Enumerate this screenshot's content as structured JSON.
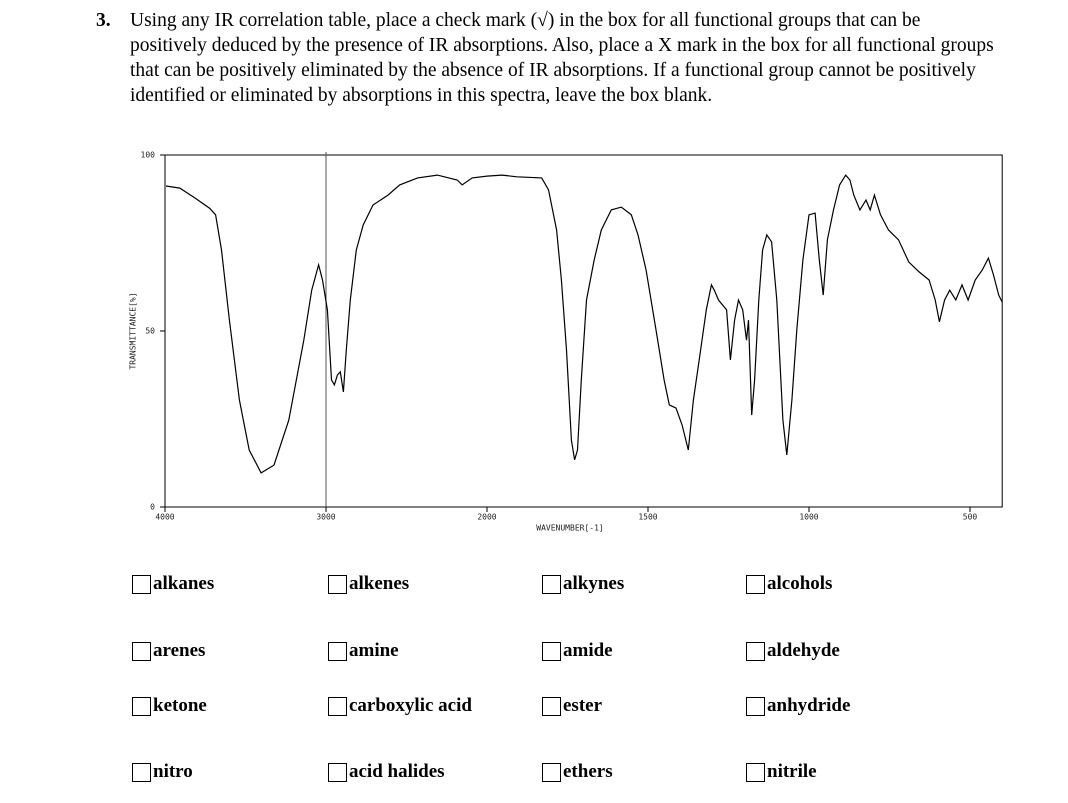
{
  "question": {
    "number": "3.",
    "text": "Using any IR correlation table, place a check mark (√) in the box for all functional groups that can be positively deduced by the presence of IR absorptions.  Also, place a X mark in the box for all functional groups that can be positively eliminated by the absence of IR absorptions.  If a functional group cannot be positively identified or eliminated by absorptions in this spectra, leave the box blank."
  },
  "chart_data": {
    "type": "line",
    "xlabel": "WAVENUMBER[-1]",
    "ylabel": "TRANSMITTANCE[%]",
    "color": "#000000",
    "x": [
      3994,
      3908,
      3815,
      3723,
      3686,
      3649,
      3600,
      3538,
      3477,
      3403,
      3323,
      3231,
      3138,
      3089,
      3046,
      3022,
      2991,
      2966,
      2948,
      2929,
      2911,
      2892,
      2874,
      2849,
      2812,
      2769,
      2708,
      2615,
      2542,
      2431,
      2308,
      2185,
      2154,
      2092,
      2000,
      1954,
      1907,
      1830,
      1809,
      1784,
      1769,
      1753,
      1738,
      1728,
      1719,
      1707,
      1691,
      1667,
      1645,
      1614,
      1583,
      1552,
      1531,
      1506,
      1475,
      1450,
      1434,
      1413,
      1394,
      1375,
      1359,
      1341,
      1319,
      1303,
      1294,
      1281,
      1256,
      1244,
      1231,
      1219,
      1206,
      1194,
      1188,
      1178,
      1169,
      1156,
      1144,
      1131,
      1116,
      1100,
      1081,
      1069,
      1053,
      1038,
      1019,
      1000,
      981,
      968,
      956,
      943,
      924,
      905,
      886,
      873,
      861,
      842,
      823,
      810,
      797,
      778,
      753,
      722,
      690,
      658,
      627,
      608,
      595,
      579,
      563,
      544,
      525,
      506,
      484,
      462,
      443,
      427,
      411,
      400
    ],
    "values": [
      91.2,
      90.6,
      87.8,
      84.9,
      83.0,
      73.0,
      53.1,
      30.4,
      16.2,
      9.7,
      11.9,
      24.7,
      47.4,
      61.6,
      68.8,
      64.5,
      56.0,
      36.1,
      34.7,
      37.5,
      38.4,
      32.7,
      44.6,
      58.8,
      73.0,
      80.1,
      85.8,
      88.6,
      91.5,
      93.5,
      94.3,
      92.9,
      91.5,
      93.5,
      94.0,
      94.3,
      93.8,
      93.5,
      90.1,
      78.7,
      64.5,
      44.6,
      19.0,
      13.4,
      16.2,
      36.1,
      58.8,
      70.2,
      78.7,
      84.4,
      85.2,
      83.0,
      77.3,
      67.3,
      50.3,
      36.1,
      29.0,
      28.1,
      23.3,
      16.2,
      30.4,
      41.8,
      56.0,
      63.1,
      61.6,
      58.8,
      56.0,
      41.8,
      53.1,
      58.8,
      56.0,
      47.4,
      53.1,
      26.1,
      36.1,
      58.8,
      73.0,
      77.3,
      75.3,
      58.8,
      24.7,
      14.8,
      30.4,
      50.3,
      70.2,
      83.0,
      83.5,
      70.2,
      60.2,
      75.9,
      84.4,
      91.5,
      94.3,
      92.9,
      88.6,
      84.4,
      87.2,
      84.4,
      88.6,
      83.0,
      78.7,
      75.9,
      69.6,
      66.8,
      64.5,
      58.8,
      52.6,
      58.8,
      61.6,
      58.8,
      63.1,
      58.8,
      64.5,
      67.3,
      70.7,
      65.9,
      60.2,
      58.2
    ],
    "xlim": [
      4000,
      400
    ],
    "xticks": [
      4000,
      3000,
      2000,
      1500,
      1000,
      500
    ],
    "vline": 3000,
    "ylim": [
      0,
      100
    ],
    "yticks": [
      0,
      50,
      100
    ]
  },
  "options": [
    [
      "alkanes",
      "alkenes",
      "alkynes",
      "alcohols"
    ],
    [
      "arenes",
      "amine",
      "amide",
      "aldehyde"
    ],
    [
      "ketone",
      "carboxylic acid",
      "ester",
      "anhydride"
    ],
    [
      "nitro",
      "acid halides",
      "ethers",
      "nitrile"
    ]
  ]
}
